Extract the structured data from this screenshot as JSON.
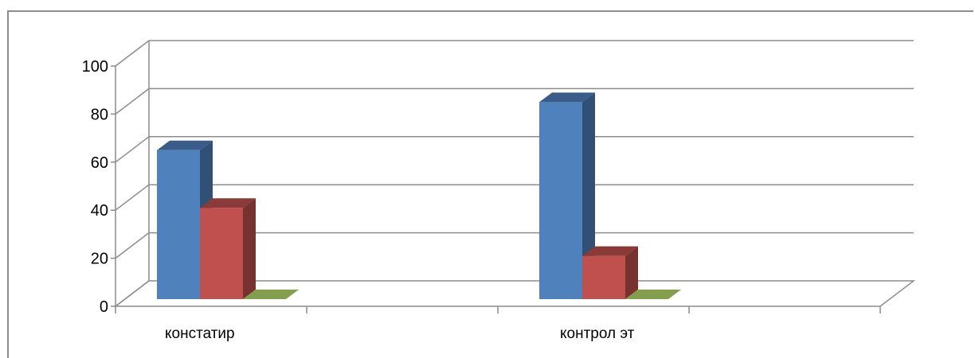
{
  "chart_data": {
    "type": "bar",
    "categories": [
      "констатир",
      "контрол эт"
    ],
    "series": [
      {
        "values": [
          62,
          82
        ],
        "color": "#4f81bd"
      },
      {
        "values": [
          38,
          18
        ],
        "color": "#c0504d"
      },
      {
        "values": [
          0,
          0
        ],
        "color": "#9bbb59"
      }
    ],
    "yticks": [
      "0",
      "20",
      "40",
      "60",
      "80",
      "100"
    ],
    "ylim": [
      0,
      100
    ],
    "grid": true,
    "legend": "none",
    "style": "3d-clustered-column"
  }
}
